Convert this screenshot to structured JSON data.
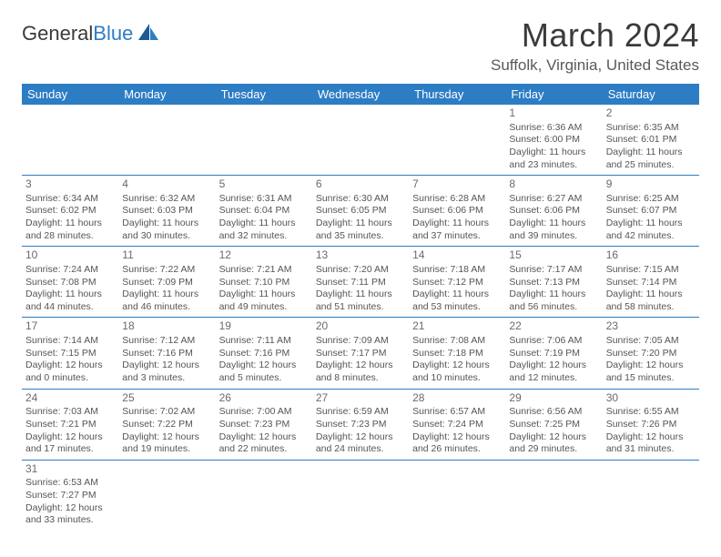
{
  "logo": {
    "part1": "General",
    "part2": "Blue"
  },
  "title": "March 2024",
  "location": "Suffolk, Virginia, United States",
  "day_names": [
    "Sunday",
    "Monday",
    "Tuesday",
    "Wednesday",
    "Thursday",
    "Friday",
    "Saturday"
  ],
  "colors": {
    "header_bg": "#2d7dc4",
    "header_text": "#ffffff",
    "border": "#2d7dc4",
    "text": "#555555",
    "title_color": "#3a3a3a"
  },
  "weeks": [
    [
      null,
      null,
      null,
      null,
      null,
      {
        "d": "1",
        "sr": "Sunrise: 6:36 AM",
        "ss": "Sunset: 6:00 PM",
        "dl": "Daylight: 11 hours and 23 minutes."
      },
      {
        "d": "2",
        "sr": "Sunrise: 6:35 AM",
        "ss": "Sunset: 6:01 PM",
        "dl": "Daylight: 11 hours and 25 minutes."
      }
    ],
    [
      {
        "d": "3",
        "sr": "Sunrise: 6:34 AM",
        "ss": "Sunset: 6:02 PM",
        "dl": "Daylight: 11 hours and 28 minutes."
      },
      {
        "d": "4",
        "sr": "Sunrise: 6:32 AM",
        "ss": "Sunset: 6:03 PM",
        "dl": "Daylight: 11 hours and 30 minutes."
      },
      {
        "d": "5",
        "sr": "Sunrise: 6:31 AM",
        "ss": "Sunset: 6:04 PM",
        "dl": "Daylight: 11 hours and 32 minutes."
      },
      {
        "d": "6",
        "sr": "Sunrise: 6:30 AM",
        "ss": "Sunset: 6:05 PM",
        "dl": "Daylight: 11 hours and 35 minutes."
      },
      {
        "d": "7",
        "sr": "Sunrise: 6:28 AM",
        "ss": "Sunset: 6:06 PM",
        "dl": "Daylight: 11 hours and 37 minutes."
      },
      {
        "d": "8",
        "sr": "Sunrise: 6:27 AM",
        "ss": "Sunset: 6:06 PM",
        "dl": "Daylight: 11 hours and 39 minutes."
      },
      {
        "d": "9",
        "sr": "Sunrise: 6:25 AM",
        "ss": "Sunset: 6:07 PM",
        "dl": "Daylight: 11 hours and 42 minutes."
      }
    ],
    [
      {
        "d": "10",
        "sr": "Sunrise: 7:24 AM",
        "ss": "Sunset: 7:08 PM",
        "dl": "Daylight: 11 hours and 44 minutes."
      },
      {
        "d": "11",
        "sr": "Sunrise: 7:22 AM",
        "ss": "Sunset: 7:09 PM",
        "dl": "Daylight: 11 hours and 46 minutes."
      },
      {
        "d": "12",
        "sr": "Sunrise: 7:21 AM",
        "ss": "Sunset: 7:10 PM",
        "dl": "Daylight: 11 hours and 49 minutes."
      },
      {
        "d": "13",
        "sr": "Sunrise: 7:20 AM",
        "ss": "Sunset: 7:11 PM",
        "dl": "Daylight: 11 hours and 51 minutes."
      },
      {
        "d": "14",
        "sr": "Sunrise: 7:18 AM",
        "ss": "Sunset: 7:12 PM",
        "dl": "Daylight: 11 hours and 53 minutes."
      },
      {
        "d": "15",
        "sr": "Sunrise: 7:17 AM",
        "ss": "Sunset: 7:13 PM",
        "dl": "Daylight: 11 hours and 56 minutes."
      },
      {
        "d": "16",
        "sr": "Sunrise: 7:15 AM",
        "ss": "Sunset: 7:14 PM",
        "dl": "Daylight: 11 hours and 58 minutes."
      }
    ],
    [
      {
        "d": "17",
        "sr": "Sunrise: 7:14 AM",
        "ss": "Sunset: 7:15 PM",
        "dl": "Daylight: 12 hours and 0 minutes."
      },
      {
        "d": "18",
        "sr": "Sunrise: 7:12 AM",
        "ss": "Sunset: 7:16 PM",
        "dl": "Daylight: 12 hours and 3 minutes."
      },
      {
        "d": "19",
        "sr": "Sunrise: 7:11 AM",
        "ss": "Sunset: 7:16 PM",
        "dl": "Daylight: 12 hours and 5 minutes."
      },
      {
        "d": "20",
        "sr": "Sunrise: 7:09 AM",
        "ss": "Sunset: 7:17 PM",
        "dl": "Daylight: 12 hours and 8 minutes."
      },
      {
        "d": "21",
        "sr": "Sunrise: 7:08 AM",
        "ss": "Sunset: 7:18 PM",
        "dl": "Daylight: 12 hours and 10 minutes."
      },
      {
        "d": "22",
        "sr": "Sunrise: 7:06 AM",
        "ss": "Sunset: 7:19 PM",
        "dl": "Daylight: 12 hours and 12 minutes."
      },
      {
        "d": "23",
        "sr": "Sunrise: 7:05 AM",
        "ss": "Sunset: 7:20 PM",
        "dl": "Daylight: 12 hours and 15 minutes."
      }
    ],
    [
      {
        "d": "24",
        "sr": "Sunrise: 7:03 AM",
        "ss": "Sunset: 7:21 PM",
        "dl": "Daylight: 12 hours and 17 minutes."
      },
      {
        "d": "25",
        "sr": "Sunrise: 7:02 AM",
        "ss": "Sunset: 7:22 PM",
        "dl": "Daylight: 12 hours and 19 minutes."
      },
      {
        "d": "26",
        "sr": "Sunrise: 7:00 AM",
        "ss": "Sunset: 7:23 PM",
        "dl": "Daylight: 12 hours and 22 minutes."
      },
      {
        "d": "27",
        "sr": "Sunrise: 6:59 AM",
        "ss": "Sunset: 7:23 PM",
        "dl": "Daylight: 12 hours and 24 minutes."
      },
      {
        "d": "28",
        "sr": "Sunrise: 6:57 AM",
        "ss": "Sunset: 7:24 PM",
        "dl": "Daylight: 12 hours and 26 minutes."
      },
      {
        "d": "29",
        "sr": "Sunrise: 6:56 AM",
        "ss": "Sunset: 7:25 PM",
        "dl": "Daylight: 12 hours and 29 minutes."
      },
      {
        "d": "30",
        "sr": "Sunrise: 6:55 AM",
        "ss": "Sunset: 7:26 PM",
        "dl": "Daylight: 12 hours and 31 minutes."
      }
    ],
    [
      {
        "d": "31",
        "sr": "Sunrise: 6:53 AM",
        "ss": "Sunset: 7:27 PM",
        "dl": "Daylight: 12 hours and 33 minutes."
      },
      null,
      null,
      null,
      null,
      null,
      null
    ]
  ]
}
